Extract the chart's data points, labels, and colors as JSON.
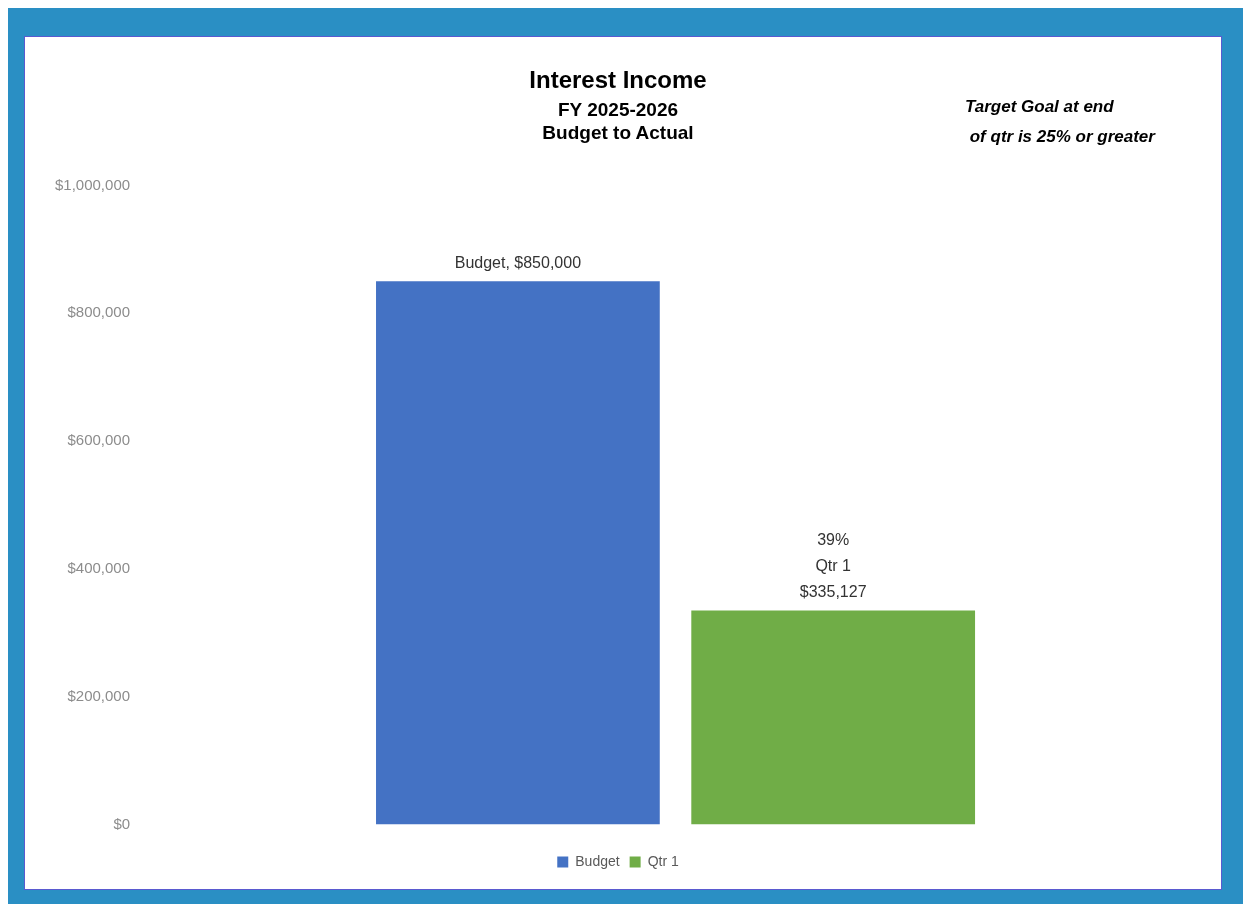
{
  "chart_data": {
    "type": "bar",
    "title": "Interest Income",
    "subtitle": "FY 2025-2026\nBudget to Actual",
    "annotations": [
      "Target Goal at end\n of qtr is 25% or greater"
    ],
    "categories": [
      null
    ],
    "series": [
      {
        "name": "Budget",
        "color": "#4472c4",
        "values": [
          850000
        ],
        "value_labels": [
          "Budget, $850,000"
        ]
      },
      {
        "name": "Qtr 1",
        "color": "#70ad47",
        "values": [
          335127
        ],
        "value_labels": [
          "39%\nQtr 1\n$335,127"
        ]
      }
    ],
    "ylim": [
      0,
      1000000
    ],
    "yticks": [
      {
        "value": 0,
        "label": "$0"
      },
      {
        "value": 200000,
        "label": "$200,000"
      },
      {
        "value": 400000,
        "label": "$400,000"
      },
      {
        "value": 600000,
        "label": "$600,000"
      },
      {
        "value": 800000,
        "label": "$800,000"
      },
      {
        "value": 1000000,
        "label": "$1,000,000"
      }
    ],
    "grid": false,
    "legend": "bottom"
  }
}
